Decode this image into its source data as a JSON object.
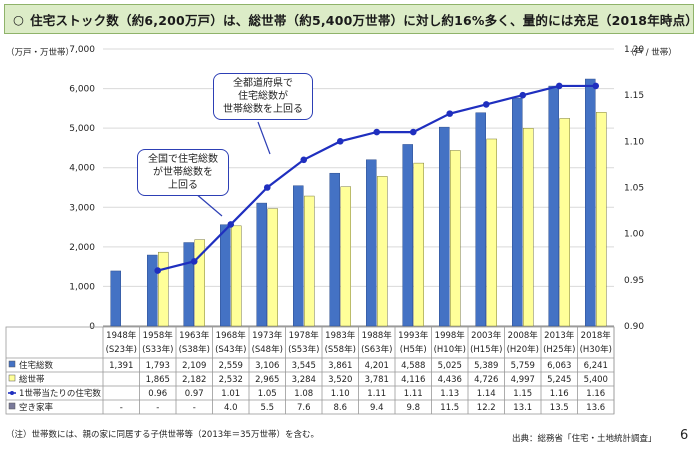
{
  "title": "住宅ストック数（約6,200万戸）は、総世帯（約5,400万世帯）に対し約16%多く、量的には充足（2018年時点）",
  "title_bullet": "○",
  "left_unit": "（万戸・万世帯）",
  "right_unit": "（戸 / 世帯）",
  "callouts": {
    "first": [
      "全国で住宅総数",
      "が世帯総数を",
      "上回る"
    ],
    "second": [
      "全都道府県で",
      "住宅総数が",
      "世帯総数を上回る"
    ]
  },
  "footnote": "（注）世帯数には、親の家に同居する子供世帯等（2013年＝35万世帯）を含む。",
  "source": "出典：総務省「住宅・土地統計調査」",
  "page_number": "6",
  "colors": {
    "housing": "#4472c4",
    "households": "#ffff99",
    "line": "#1f2fbf",
    "title_bg": "#dcecc7"
  },
  "chart_data": {
    "type": "bar",
    "categories": [
      [
        "1948年",
        "(S23年)"
      ],
      [
        "1958年",
        "(S33年)"
      ],
      [
        "1963年",
        "(S38年)"
      ],
      [
        "1968年",
        "(S43年)"
      ],
      [
        "1973年",
        "(S48年)"
      ],
      [
        "1978年",
        "(S53年)"
      ],
      [
        "1983年",
        "(S58年)"
      ],
      [
        "1988年",
        "(S63年)"
      ],
      [
        "1993年",
        "(H5年)"
      ],
      [
        "1998年",
        "(H10年)"
      ],
      [
        "2003年",
        "(H15年)"
      ],
      [
        "2008年",
        "(H20年)"
      ],
      [
        "2013年",
        "(H25年)"
      ],
      [
        "2018年",
        "(H30年)"
      ]
    ],
    "series": [
      {
        "name": "住宅総数",
        "kind": "bar",
        "axis": "left",
        "values": [
          1391,
          1793,
          2109,
          2559,
          3106,
          3545,
          3861,
          4201,
          4588,
          5025,
          5389,
          5759,
          6063,
          6241
        ]
      },
      {
        "name": "総世帯",
        "kind": "bar",
        "axis": "left",
        "values": [
          null,
          1865,
          2182,
          2532,
          2965,
          3284,
          3520,
          3781,
          4116,
          4436,
          4726,
          4997,
          5245,
          5400
        ]
      },
      {
        "name": "1世帯当たりの住宅数",
        "kind": "line",
        "axis": "right",
        "values": [
          null,
          0.96,
          0.97,
          1.01,
          1.05,
          1.08,
          1.1,
          1.11,
          1.11,
          1.13,
          1.14,
          1.15,
          1.16,
          1.16
        ]
      },
      {
        "name": "空き家率",
        "kind": "table",
        "values": [
          null,
          null,
          null,
          4.0,
          5.5,
          7.6,
          8.6,
          9.4,
          9.8,
          11.5,
          12.2,
          13.1,
          13.5,
          13.6
        ]
      }
    ],
    "table": {
      "rows": [
        [
          "1,391",
          "1,793",
          "2,109",
          "2,559",
          "3,106",
          "3,545",
          "3,861",
          "4,201",
          "4,588",
          "5,025",
          "5,389",
          "5,759",
          "6,063",
          "6,241"
        ],
        [
          "",
          "1,865",
          "2,182",
          "2,532",
          "2,965",
          "3,284",
          "3,520",
          "3,781",
          "4,116",
          "4,436",
          "4,726",
          "4,997",
          "5,245",
          "5,400"
        ],
        [
          "",
          "0.96",
          "0.97",
          "1.01",
          "1.05",
          "1.08",
          "1.10",
          "1.11",
          "1.11",
          "1.13",
          "1.14",
          "1.15",
          "1.16",
          "1.16"
        ],
        [
          "-",
          "-",
          "-",
          "4.0",
          "5.5",
          "7.6",
          "8.6",
          "9.4",
          "9.8",
          "11.5",
          "12.2",
          "13.1",
          "13.5",
          "13.6"
        ]
      ]
    },
    "left_axis": {
      "ylim": [
        0,
        7000
      ],
      "ticks": [
        "0",
        "1,000",
        "2,000",
        "3,000",
        "4,000",
        "5,000",
        "6,000",
        "7,000"
      ]
    },
    "right_axis": {
      "ylim": [
        0.9,
        1.2
      ],
      "ticks": [
        "0.90",
        "0.95",
        "1.00",
        "1.05",
        "1.10",
        "1.15",
        "1.20"
      ]
    },
    "grid": true
  }
}
